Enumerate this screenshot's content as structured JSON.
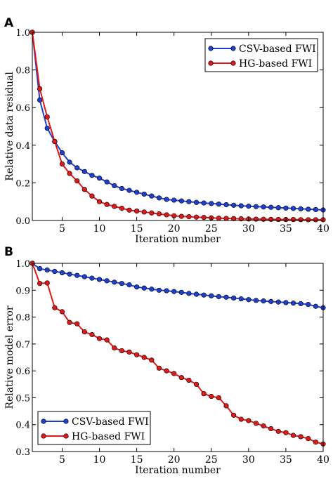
{
  "colors": {
    "csv": "#1f3fd1",
    "hg": "#e01818",
    "axis": "#000000",
    "background": "#ffffff"
  },
  "chart_data": [
    {
      "panel_label": "A",
      "type": "line",
      "xlabel": "Iteration number",
      "ylabel": "Relative data residual",
      "xlim": [
        1,
        40
      ],
      "ylim": [
        0,
        1.0
      ],
      "xticks": [
        5,
        10,
        15,
        20,
        25,
        30,
        35,
        40
      ],
      "yticks": [
        0,
        0.2,
        0.4,
        0.6,
        0.8,
        1.0
      ],
      "ytick_labels": [
        "0.0",
        "0.2",
        "0.4",
        "0.6",
        "0.8",
        "1.0"
      ],
      "grid": false,
      "legend_placement": "top-right",
      "x": [
        1,
        2,
        3,
        4,
        5,
        6,
        7,
        8,
        9,
        10,
        11,
        12,
        13,
        14,
        15,
        16,
        17,
        18,
        19,
        20,
        21,
        22,
        23,
        24,
        25,
        26,
        27,
        28,
        29,
        30,
        31,
        32,
        33,
        34,
        35,
        36,
        37,
        38,
        39,
        40
      ],
      "series": [
        {
          "name": "CSV-based FWI",
          "color": "#1f3fd1",
          "values": [
            1.0,
            0.64,
            0.49,
            0.42,
            0.36,
            0.31,
            0.28,
            0.26,
            0.24,
            0.225,
            0.205,
            0.185,
            0.17,
            0.16,
            0.15,
            0.14,
            0.13,
            0.12,
            0.112,
            0.108,
            0.104,
            0.1,
            0.096,
            0.093,
            0.09,
            0.087,
            0.084,
            0.081,
            0.078,
            0.076,
            0.074,
            0.072,
            0.07,
            0.068,
            0.066,
            0.064,
            0.062,
            0.06,
            0.058,
            0.056
          ]
        },
        {
          "name": "HG-based FWI",
          "color": "#e01818",
          "values": [
            1.0,
            0.7,
            0.55,
            0.42,
            0.3,
            0.25,
            0.21,
            0.165,
            0.13,
            0.1,
            0.085,
            0.075,
            0.065,
            0.055,
            0.05,
            0.045,
            0.04,
            0.035,
            0.03,
            0.025,
            0.022,
            0.02,
            0.018,
            0.016,
            0.014,
            0.012,
            0.011,
            0.01,
            0.009,
            0.008,
            0.007,
            0.0065,
            0.006,
            0.0055,
            0.005,
            0.005,
            0.0045,
            0.004,
            0.004,
            0.004
          ]
        }
      ]
    },
    {
      "panel_label": "B",
      "type": "line",
      "xlabel": "Iteration number",
      "ylabel": "Relative model error",
      "xlim": [
        1,
        40
      ],
      "ylim": [
        0.3,
        1.0
      ],
      "xticks": [
        5,
        10,
        15,
        20,
        25,
        30,
        35,
        40
      ],
      "yticks": [
        0.3,
        0.4,
        0.5,
        0.6,
        0.7,
        0.8,
        0.9,
        1.0
      ],
      "ytick_labels": [
        "0.3",
        "0.4",
        "0.5",
        "0.6",
        "0.7",
        "0.8",
        "0.9",
        "1.0"
      ],
      "grid": false,
      "legend_placement": "bottom-left",
      "x": [
        1,
        2,
        3,
        4,
        5,
        6,
        7,
        8,
        9,
        10,
        11,
        12,
        13,
        14,
        15,
        16,
        17,
        18,
        19,
        20,
        21,
        22,
        23,
        24,
        25,
        26,
        27,
        28,
        29,
        30,
        31,
        32,
        33,
        34,
        35,
        36,
        37,
        38,
        39,
        40
      ],
      "series": [
        {
          "name": "CSV-based FWI",
          "color": "#1f3fd1",
          "values": [
            1.0,
            0.98,
            0.975,
            0.97,
            0.965,
            0.96,
            0.955,
            0.95,
            0.945,
            0.94,
            0.935,
            0.93,
            0.925,
            0.92,
            0.912,
            0.908,
            0.904,
            0.9,
            0.898,
            0.895,
            0.892,
            0.888,
            0.885,
            0.882,
            0.879,
            0.876,
            0.874,
            0.871,
            0.868,
            0.865,
            0.862,
            0.86,
            0.858,
            0.856,
            0.854,
            0.852,
            0.85,
            0.847,
            0.84,
            0.835
          ]
        },
        {
          "name": "HG-based FWI",
          "color": "#e01818",
          "values": [
            1.0,
            0.925,
            0.927,
            0.835,
            0.82,
            0.78,
            0.775,
            0.745,
            0.735,
            0.72,
            0.715,
            0.685,
            0.675,
            0.67,
            0.66,
            0.65,
            0.64,
            0.61,
            0.6,
            0.59,
            0.575,
            0.565,
            0.55,
            0.515,
            0.505,
            0.5,
            0.47,
            0.435,
            0.42,
            0.415,
            0.405,
            0.395,
            0.385,
            0.375,
            0.37,
            0.36,
            0.355,
            0.348,
            0.335,
            0.328
          ]
        }
      ]
    }
  ]
}
